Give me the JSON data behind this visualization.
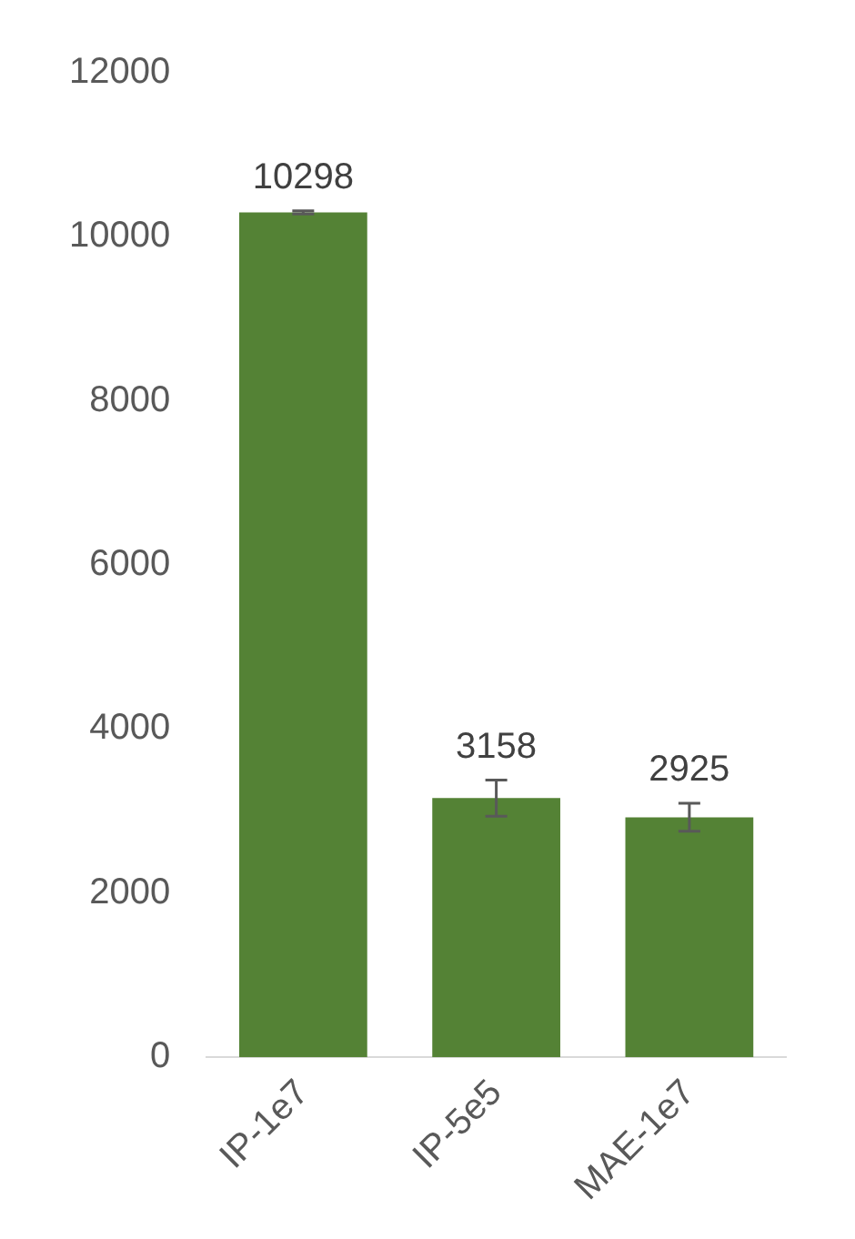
{
  "chart_data": {
    "type": "bar",
    "categories": [
      "IP-1e7",
      "IP-5e5",
      "MAE-1e7"
    ],
    "values": [
      10298,
      3158,
      2925
    ],
    "errors": [
      20,
      220,
      170
    ],
    "color": "#548235",
    "ylim": [
      0,
      12000
    ],
    "yticks": [
      0,
      2000,
      4000,
      6000,
      8000,
      10000,
      12000
    ],
    "grid": false,
    "legend": false,
    "data_labels": true
  }
}
